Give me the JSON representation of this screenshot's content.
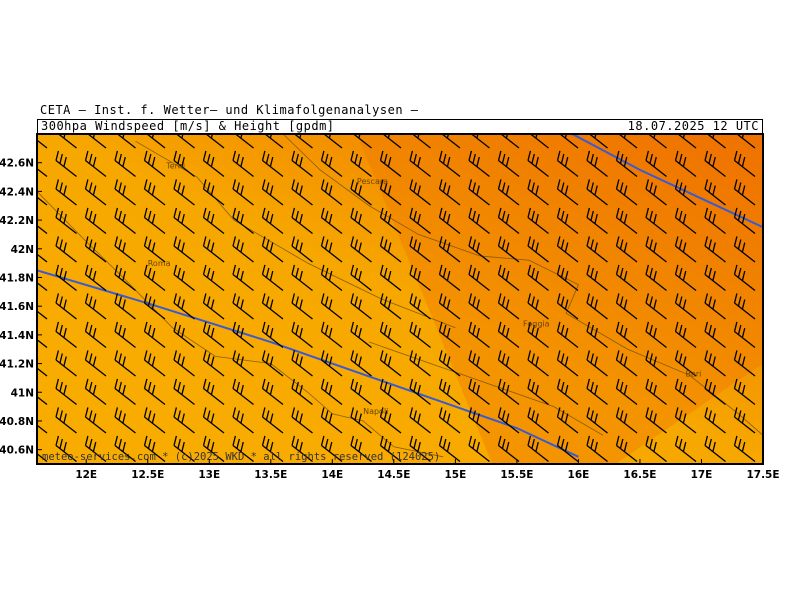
{
  "header": {
    "institute": "CETA – Inst. f. Wetter– und Klimafolgenanalysen –",
    "title": "300hpa Windspeed [m/s] & Height [gpdm]",
    "valid_time": "18.07.2025 12 UTC"
  },
  "map": {
    "lon_range": [
      11.6,
      17.5
    ],
    "lat_range": [
      40.5,
      42.8
    ],
    "lon_ticks": [
      "12E",
      "12.5E",
      "13E",
      "13.5E",
      "14E",
      "14.5E",
      "15E",
      "15.5E",
      "16E",
      "16.5E",
      "17E",
      "17.5E"
    ],
    "lon_tick_values": [
      12,
      12.5,
      13,
      13.5,
      14,
      14.5,
      15,
      15.5,
      16,
      16.5,
      17,
      17.5
    ],
    "lat_ticks": [
      "42.6N",
      "42.4N",
      "42.2N",
      "42N",
      "41.8N",
      "41.6N",
      "41.4N",
      "41.2N",
      "41N",
      "40.8N",
      "40.6N"
    ],
    "lat_tick_values": [
      42.6,
      42.4,
      42.2,
      42.0,
      41.8,
      41.6,
      41.4,
      41.2,
      41.0,
      40.8,
      40.6
    ],
    "copyright": "meteo-services.com * (c)2025 WKD * all rights reserved (124025)",
    "places": [
      {
        "name": "Terni",
        "lon": 12.65,
        "lat": 42.56
      },
      {
        "name": "Pescara",
        "lon": 14.2,
        "lat": 42.45
      },
      {
        "name": "Roma",
        "lon": 12.5,
        "lat": 41.88
      },
      {
        "name": "Foggia",
        "lon": 15.55,
        "lat": 41.46
      },
      {
        "name": "Bari",
        "lon": 16.87,
        "lat": 41.11
      },
      {
        "name": "Napoli",
        "lon": 14.25,
        "lat": 40.85
      }
    ],
    "colors": {
      "background_orange": "#f7a800",
      "mid_orange": "#f28a00",
      "dark_orange": "#ee6a00",
      "height_contour": "#3a5bd0",
      "barb": "#000000"
    },
    "wind": {
      "dominant_direction": "northwest",
      "barb_style": "3 full feathers"
    }
  }
}
